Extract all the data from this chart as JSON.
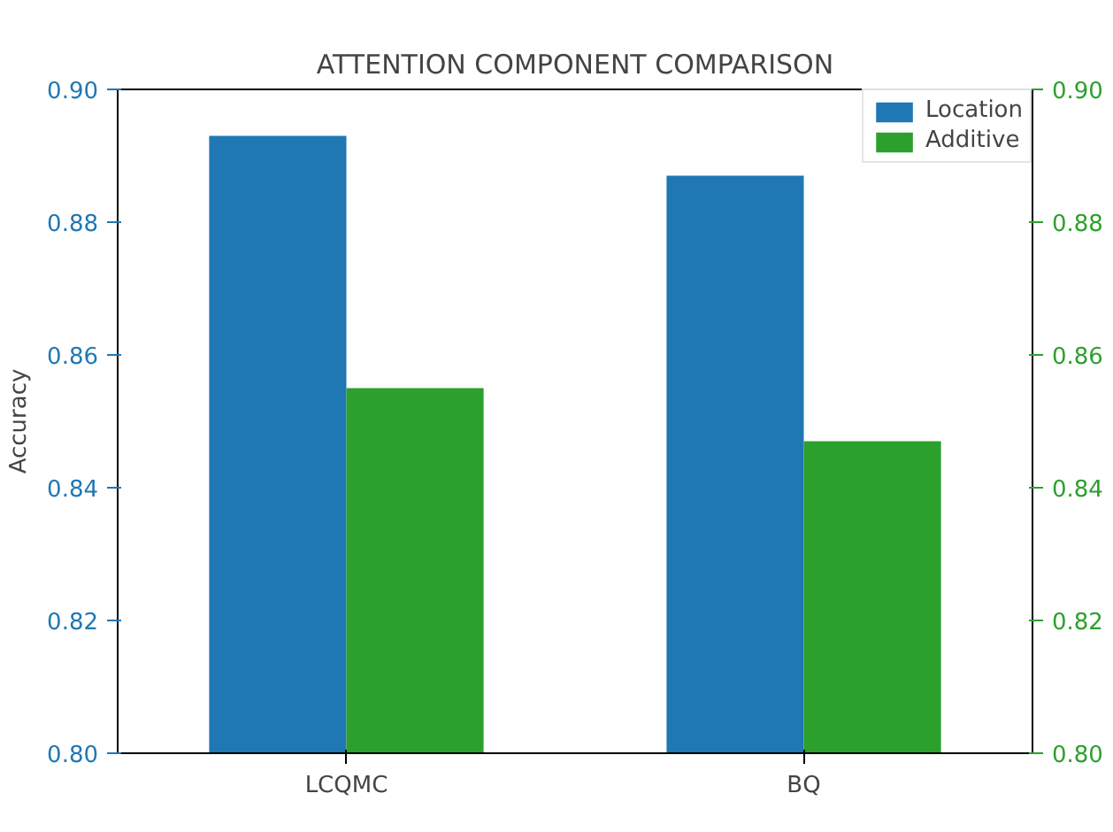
{
  "chart_data": {
    "type": "bar",
    "title": "ATTENTION COMPONENT COMPARISON",
    "ylabel": "Accuracy",
    "categories": [
      "LCQMC",
      "BQ"
    ],
    "series": [
      {
        "name": "Location",
        "color": "#1f77b4",
        "values": [
          0.893,
          0.887
        ]
      },
      {
        "name": "Additive",
        "color": "#2ca02c",
        "values": [
          0.855,
          0.847
        ],
        "axis": "y2"
      }
    ],
    "ylim": [
      0.8,
      0.9
    ],
    "yticks": [
      {
        "value": 0.8,
        "label": "0.80"
      },
      {
        "value": 0.82,
        "label": "0.82"
      },
      {
        "value": 0.84,
        "label": "0.84"
      },
      {
        "value": 0.86,
        "label": "0.86"
      },
      {
        "value": 0.88,
        "label": "0.88"
      },
      {
        "value": 0.9,
        "label": "0.90"
      }
    ],
    "y2lim": [
      0.8,
      0.9
    ],
    "y2ticks": [
      {
        "value": 0.8,
        "label": "0.80"
      },
      {
        "value": 0.82,
        "label": "0.82"
      },
      {
        "value": 0.84,
        "label": "0.84"
      },
      {
        "value": 0.86,
        "label": "0.86"
      },
      {
        "value": 0.88,
        "label": "0.88"
      },
      {
        "value": 0.9,
        "label": "0.90"
      }
    ],
    "grid": false,
    "legend": "top right"
  }
}
